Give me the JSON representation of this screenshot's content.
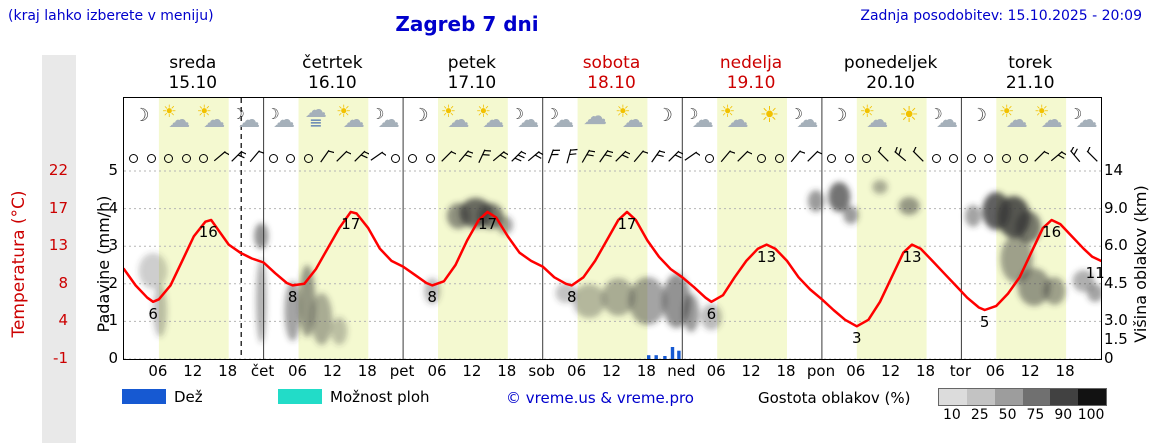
{
  "header": {
    "hint": "(kraj lahko izberete v meniju)",
    "title": "Zagreb 7 dni",
    "updated": "Zadnja posodobitev: 15.10.2025 - 20:09"
  },
  "axes": {
    "temp_label": "Temperatura (°C)",
    "precip_label": "Padavine (mm/h)",
    "cloud_label": "Višina oblakov (km)",
    "temp_ticks": [
      "22",
      "17",
      "13",
      "8",
      "4",
      "-1"
    ],
    "precip_ticks": [
      "5",
      "4",
      "3",
      "2",
      "1",
      "0"
    ],
    "cloud_ticks": [
      "14",
      "9.0",
      "6.0",
      "4.5",
      "3.0",
      "1.5",
      "0"
    ]
  },
  "days": [
    {
      "name": "sreda",
      "date": "15.10",
      "weekend": false,
      "abbr": ""
    },
    {
      "name": "četrtek",
      "date": "16.10",
      "weekend": false,
      "abbr": "čet"
    },
    {
      "name": "petek",
      "date": "17.10",
      "weekend": false,
      "abbr": "pet"
    },
    {
      "name": "sobota",
      "date": "18.10",
      "weekend": true,
      "abbr": "sob"
    },
    {
      "name": "nedelja",
      "date": "19.10",
      "weekend": true,
      "abbr": "ned"
    },
    {
      "name": "ponedeljek",
      "date": "20.10",
      "weekend": false,
      "abbr": "pon"
    },
    {
      "name": "torek",
      "date": "21.10",
      "weekend": false,
      "abbr": "tor"
    }
  ],
  "x_ticks": [
    "06",
    "12",
    "18"
  ],
  "legend": {
    "rain": "Dež",
    "showers": "Možnost ploh",
    "copyright": "© vreme.us & vreme.pro",
    "cloud_density": "Gostota oblakov (%)",
    "density_scale": [
      "10",
      "25",
      "50",
      "75",
      "90",
      "100"
    ],
    "density_shades": [
      "#dcdcdc",
      "#c3c3c3",
      "#9d9d9d",
      "#707070",
      "#414141",
      "#121212"
    ],
    "rain_color": "#1659d2",
    "showers_color": "#22dcc8"
  },
  "chart_data": {
    "type": "line",
    "title": "Zagreb 7 dni",
    "x_axis": "hours 0-168 (7 days × 24 h, ticks at 06/12/18)",
    "temp_axis_ticks_c": [
      22,
      17,
      13,
      8,
      4,
      -1
    ],
    "precip_axis_ticks_mm": [
      5,
      4,
      3,
      2,
      1,
      0
    ],
    "cloud_axis_ticks_km": [
      14,
      9.0,
      6.0,
      4.5,
      3.0,
      1.5,
      0
    ],
    "now_hour": 20.15,
    "colors": {
      "temperature": "#ff0000",
      "rain": "#1659d2",
      "day_band": "#f4f9d0"
    },
    "temperature_c": [
      [
        0,
        10
      ],
      [
        2,
        8
      ],
      [
        4,
        6.5
      ],
      [
        5,
        6
      ],
      [
        6,
        6.3
      ],
      [
        8,
        8
      ],
      [
        10,
        11
      ],
      [
        12,
        14
      ],
      [
        14,
        15.8
      ],
      [
        15,
        16
      ],
      [
        16,
        15
      ],
      [
        18,
        13
      ],
      [
        20,
        12
      ],
      [
        22,
        11.3
      ],
      [
        24,
        10.8
      ],
      [
        26,
        9.5
      ],
      [
        28,
        8.3
      ],
      [
        29,
        8
      ],
      [
        31,
        8.2
      ],
      [
        33,
        10
      ],
      [
        35,
        12.5
      ],
      [
        37,
        15
      ],
      [
        39,
        17
      ],
      [
        40,
        16.8
      ],
      [
        42,
        15
      ],
      [
        44,
        12.5
      ],
      [
        46,
        11
      ],
      [
        48,
        10.3
      ],
      [
        50,
        9.3
      ],
      [
        52,
        8.3
      ],
      [
        53,
        8
      ],
      [
        55,
        8.5
      ],
      [
        57,
        10.5
      ],
      [
        59,
        13.5
      ],
      [
        61,
        16
      ],
      [
        62.5,
        17
      ],
      [
        64,
        16.3
      ],
      [
        66,
        14
      ],
      [
        68,
        12
      ],
      [
        70,
        11
      ],
      [
        72,
        10.3
      ],
      [
        74,
        9
      ],
      [
        76,
        8.2
      ],
      [
        77,
        8
      ],
      [
        79,
        9
      ],
      [
        81,
        11
      ],
      [
        83,
        13.5
      ],
      [
        85,
        16
      ],
      [
        86.5,
        17
      ],
      [
        88,
        16
      ],
      [
        90,
        13.5
      ],
      [
        92,
        11.5
      ],
      [
        94,
        10
      ],
      [
        96,
        9
      ],
      [
        98,
        7.8
      ],
      [
        100,
        6.5
      ],
      [
        101,
        6
      ],
      [
        103,
        6.8
      ],
      [
        105,
        9
      ],
      [
        107,
        11
      ],
      [
        109,
        12.5
      ],
      [
        110.5,
        13
      ],
      [
        112,
        12.5
      ],
      [
        114,
        11
      ],
      [
        116,
        9
      ],
      [
        118,
        7.5
      ],
      [
        120,
        6.3
      ],
      [
        122,
        5
      ],
      [
        124,
        3.8
      ],
      [
        126,
        3
      ],
      [
        128,
        3.8
      ],
      [
        130,
        6
      ],
      [
        132,
        9
      ],
      [
        134,
        12
      ],
      [
        135.5,
        13
      ],
      [
        137,
        12.5
      ],
      [
        139,
        11
      ],
      [
        141,
        9.5
      ],
      [
        143,
        8
      ],
      [
        145,
        6.5
      ],
      [
        147,
        5.3
      ],
      [
        148,
        5
      ],
      [
        150,
        5.5
      ],
      [
        152,
        7
      ],
      [
        154,
        9
      ],
      [
        156,
        12
      ],
      [
        158,
        15
      ],
      [
        159.5,
        16
      ],
      [
        161,
        15.5
      ],
      [
        163,
        14
      ],
      [
        165,
        12.5
      ],
      [
        166.5,
        11.5
      ],
      [
        168,
        11
      ]
    ],
    "extreme_labels": [
      [
        5,
        6,
        "6"
      ],
      [
        14.5,
        16,
        "16"
      ],
      [
        29,
        8,
        "8"
      ],
      [
        39,
        17,
        "17"
      ],
      [
        53,
        8,
        "8"
      ],
      [
        62.5,
        17,
        "17"
      ],
      [
        77,
        8,
        "8"
      ],
      [
        86.5,
        17,
        "17"
      ],
      [
        101,
        6,
        "6"
      ],
      [
        110.5,
        13,
        "13"
      ],
      [
        126,
        3,
        "3"
      ],
      [
        135.5,
        13,
        "13"
      ],
      [
        148,
        5,
        "5"
      ],
      [
        159.5,
        16,
        "16"
      ],
      [
        167,
        11,
        "11"
      ]
    ],
    "rain_mm_h": [
      [
        90.2,
        0.1
      ],
      [
        91.5,
        0.1
      ],
      [
        93,
        0.08
      ],
      [
        94.3,
        0.32
      ],
      [
        95.4,
        0.22
      ]
    ],
    "cloud_blobs": [
      [
        5,
        173,
        2.5,
        18,
        0.25
      ],
      [
        6.2,
        213,
        1.2,
        26,
        0.3
      ],
      [
        23.6,
        138,
        1.2,
        13,
        0.55
      ],
      [
        23.6,
        203,
        0.9,
        42,
        0.4
      ],
      [
        29,
        213,
        1.4,
        30,
        0.45
      ],
      [
        31.5,
        203,
        1.4,
        36,
        0.5
      ],
      [
        34,
        221,
        1.8,
        26,
        0.4
      ],
      [
        37,
        233,
        1.4,
        14,
        0.3
      ],
      [
        53,
        193,
        1.4,
        13,
        0.35
      ],
      [
        57.5,
        118,
        2,
        13,
        0.55
      ],
      [
        60.5,
        115,
        2.8,
        15,
        0.75
      ],
      [
        63,
        118,
        2.2,
        13,
        0.65
      ],
      [
        65.5,
        127,
        1.4,
        9,
        0.45
      ],
      [
        76,
        195,
        1.8,
        10,
        0.3
      ],
      [
        80,
        203,
        2.8,
        17,
        0.35
      ],
      [
        85,
        199,
        2.8,
        19,
        0.4
      ],
      [
        90,
        203,
        3.2,
        24,
        0.45
      ],
      [
        95,
        203,
        2.4,
        27,
        0.55
      ],
      [
        97.5,
        215,
        1.4,
        19,
        0.5
      ],
      [
        101,
        219,
        1.8,
        13,
        0.35
      ],
      [
        119,
        103,
        1.4,
        11,
        0.5
      ],
      [
        123,
        99,
        1.9,
        15,
        0.7
      ],
      [
        125,
        117,
        1.3,
        9,
        0.5
      ],
      [
        130,
        89,
        1.3,
        7,
        0.4
      ],
      [
        135,
        108,
        1.8,
        9,
        0.5
      ],
      [
        146,
        118,
        1.4,
        11,
        0.45
      ],
      [
        150,
        113,
        2.4,
        19,
        0.8
      ],
      [
        153,
        119,
        2.8,
        21,
        0.85
      ],
      [
        155.5,
        129,
        2.2,
        16,
        0.65
      ],
      [
        153.5,
        161,
        2.8,
        24,
        0.45
      ],
      [
        156.5,
        189,
        2.8,
        19,
        0.5
      ],
      [
        160,
        193,
        1.9,
        14,
        0.45
      ],
      [
        165,
        183,
        1.9,
        11,
        0.4
      ],
      [
        167,
        195,
        1.4,
        9,
        0.45
      ]
    ],
    "weather_icons": [
      "moon",
      "sun-cloud",
      "sun-cloud",
      "moon-cloud",
      "moon-cloud",
      "fog",
      "sun-cloud",
      "moon-cloud",
      "moon",
      "sun-cloud",
      "sun-cloud",
      "moon-cloud",
      "moon-cloud",
      "cloud",
      "sun-cloud",
      "moon",
      "moon-cloud",
      "sun-cloud",
      "sun",
      "moon-cloud",
      "moon",
      "sun-cloud",
      "sun",
      "moon-cloud",
      "moon",
      "sun-cloud",
      "sun-cloud",
      "moon-cloud"
    ],
    "wind_symbols": [
      "o",
      "o",
      "o",
      "o",
      "o",
      "50/1",
      "45/2",
      "40/1",
      "o",
      "o",
      "o",
      "35/1",
      "45/1",
      "45/2",
      "55/1",
      "o",
      "o",
      "o",
      "45/1",
      "40/2",
      "25/2",
      "50/2",
      "45/3",
      "50/2",
      "20/2",
      "15/2",
      "30/2",
      "35/2",
      "45/2",
      "40/1",
      "35/2",
      "45/2",
      "55/1",
      "o",
      "40/1",
      "45/1",
      "o",
      "o",
      "40/1",
      "45/1",
      "o",
      "o",
      "o",
      "-45/1",
      "-50/2",
      "-45/1",
      "o",
      "o",
      "o",
      "o",
      "o",
      "o",
      "45/1",
      "50/2",
      "-40/2",
      "-45/1"
    ]
  }
}
